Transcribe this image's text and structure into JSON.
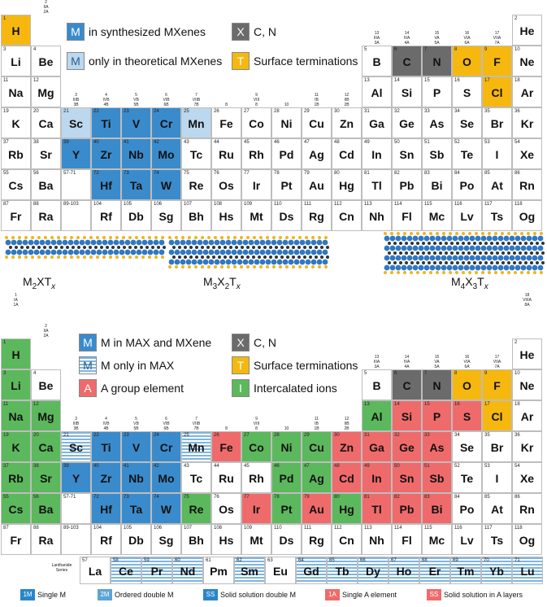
{
  "colors": {
    "synth": "#3a8bcc",
    "theory": "#bcd8ef",
    "gray": "#6b6b6b",
    "term": "#f6b80f",
    "agroup": "#ef6b6b",
    "interc": "#5cb85c",
    "white": "#ffffff",
    "hatch": "#7fb5de"
  },
  "elements": {
    "H": [
      1,
      "H"
    ],
    "He": [
      2,
      "He"
    ],
    "Li": [
      3,
      "Li"
    ],
    "Be": [
      4,
      "Be"
    ],
    "B": [
      5,
      "B"
    ],
    "C": [
      6,
      "C"
    ],
    "N": [
      7,
      "N"
    ],
    "O": [
      8,
      "O"
    ],
    "F": [
      9,
      "F"
    ],
    "Ne": [
      10,
      "Ne"
    ],
    "Na": [
      11,
      "Na"
    ],
    "Mg": [
      12,
      "Mg"
    ],
    "Al": [
      13,
      "Al"
    ],
    "Si": [
      14,
      "Si"
    ],
    "P": [
      15,
      "P"
    ],
    "S": [
      16,
      "S"
    ],
    "Cl": [
      17,
      "Cl"
    ],
    "Ar": [
      18,
      "Ar"
    ],
    "K": [
      19,
      "K"
    ],
    "Ca": [
      20,
      "Ca"
    ],
    "Sc": [
      21,
      "Sc"
    ],
    "Ti": [
      22,
      "Ti"
    ],
    "V": [
      23,
      "V"
    ],
    "Cr": [
      24,
      "Cr"
    ],
    "Mn": [
      25,
      "Mn"
    ],
    "Fe": [
      26,
      "Fe"
    ],
    "Co": [
      27,
      "Co"
    ],
    "Ni": [
      28,
      "Ni"
    ],
    "Cu": [
      29,
      "Cu"
    ],
    "Zn": [
      30,
      "Zn"
    ],
    "Ga": [
      31,
      "Ga"
    ],
    "Ge": [
      32,
      "Ge"
    ],
    "As": [
      33,
      "As"
    ],
    "Se": [
      34,
      "Se"
    ],
    "Br": [
      35,
      "Br"
    ],
    "Kr": [
      36,
      "Kr"
    ],
    "Rb": [
      37,
      "Rb"
    ],
    "Sr": [
      38,
      "Sr"
    ],
    "Y": [
      39,
      "Y"
    ],
    "Zr": [
      40,
      "Zr"
    ],
    "Nb": [
      41,
      "Nb"
    ],
    "Mo": [
      42,
      "Mo"
    ],
    "Tc": [
      43,
      "Tc"
    ],
    "Ru": [
      44,
      "Ru"
    ],
    "Rh": [
      45,
      "Rh"
    ],
    "Pd": [
      46,
      "Pd"
    ],
    "Ag": [
      47,
      "Ag"
    ],
    "Cd": [
      48,
      "Cd"
    ],
    "In": [
      49,
      "In"
    ],
    "Sn": [
      50,
      "Sn"
    ],
    "Sb": [
      51,
      "Sb"
    ],
    "Te": [
      52,
      "Te"
    ],
    "I": [
      53,
      "I"
    ],
    "Xe": [
      54,
      "Xe"
    ],
    "Cs": [
      55,
      "Cs"
    ],
    "Ba": [
      56,
      "Ba"
    ],
    "La57": [
      "57-71",
      ""
    ],
    "Hf": [
      72,
      "Hf"
    ],
    "Ta": [
      73,
      "Ta"
    ],
    "W": [
      74,
      "W"
    ],
    "Re": [
      75,
      "Re"
    ],
    "Os": [
      76,
      "Os"
    ],
    "Ir": [
      77,
      "Ir"
    ],
    "Pt": [
      78,
      "Pt"
    ],
    "Au": [
      79,
      "Au"
    ],
    "Hg": [
      80,
      "Hg"
    ],
    "Tl": [
      81,
      "Tl"
    ],
    "Pb": [
      82,
      "Pb"
    ],
    "Bi": [
      83,
      "Bi"
    ],
    "Po": [
      84,
      "Po"
    ],
    "At": [
      85,
      "At"
    ],
    "Rn": [
      86,
      "Rn"
    ],
    "Fr": [
      87,
      "Fr"
    ],
    "Ra": [
      88,
      "Ra"
    ],
    "Ac89": [
      "89-103",
      ""
    ],
    "Rf": [
      104,
      "Rf"
    ],
    "Db": [
      105,
      "Db"
    ],
    "Sg": [
      106,
      "Sg"
    ],
    "Bh": [
      107,
      "Bh"
    ],
    "Hs": [
      108,
      "Hs"
    ],
    "Mt": [
      109,
      "Mt"
    ],
    "Ds": [
      110,
      "Ds"
    ],
    "Rg": [
      111,
      "Rg"
    ],
    "Cn": [
      112,
      "Cn"
    ],
    "Nh": [
      113,
      "Nh"
    ],
    "Fl": [
      114,
      "Fl"
    ],
    "Mc": [
      115,
      "Mc"
    ],
    "Lv": [
      116,
      "Lv"
    ],
    "Ts": [
      117,
      "Ts"
    ],
    "Og": [
      118,
      "Og"
    ]
  },
  "layout_rows": [
    [
      "H",
      null,
      null,
      null,
      null,
      null,
      null,
      null,
      null,
      null,
      null,
      null,
      null,
      null,
      null,
      null,
      null,
      "He"
    ],
    [
      "Li",
      "Be",
      null,
      null,
      null,
      null,
      null,
      null,
      null,
      null,
      null,
      null,
      "B",
      "C",
      "N",
      "O",
      "F",
      "Ne"
    ],
    [
      "Na",
      "Mg",
      null,
      null,
      null,
      null,
      null,
      null,
      null,
      null,
      null,
      null,
      "Al",
      "Si",
      "P",
      "S",
      "Cl",
      "Ar"
    ],
    [
      "K",
      "Ca",
      "Sc",
      "Ti",
      "V",
      "Cr",
      "Mn",
      "Fe",
      "Co",
      "Ni",
      "Cu",
      "Zn",
      "Ga",
      "Ge",
      "As",
      "Se",
      "Br",
      "Kr"
    ],
    [
      "Rb",
      "Sr",
      "Y",
      "Zr",
      "Nb",
      "Mo",
      "Tc",
      "Ru",
      "Rh",
      "Pd",
      "Ag",
      "Cd",
      "In",
      "Sn",
      "Sb",
      "Te",
      "I",
      "Xe"
    ],
    [
      "Cs",
      "Ba",
      "La57",
      "Hf",
      "Ta",
      "W",
      "Re",
      "Os",
      "Ir",
      "Pt",
      "Au",
      "Hg",
      "Tl",
      "Pb",
      "Bi",
      "Po",
      "At",
      "Rn"
    ],
    [
      "Fr",
      "Ra",
      "Ac89",
      "Rf",
      "Db",
      "Sg",
      "Bh",
      "Hs",
      "Mt",
      "Ds",
      "Rg",
      "Cn",
      "Nh",
      "Fl",
      "Mc",
      "Lv",
      "Ts",
      "Og"
    ]
  ],
  "group_labels": {
    "g1": "1\nIA\n1A",
    "g2": "2\nIIA\n2A",
    "g3": "3\nIIIB\n3B",
    "g4": "4\nIVB\n4B",
    "g5": "5\nVB\n5B",
    "g6": "6\nVIB\n6B",
    "g7": "7\nVIIB\n7B",
    "g8": "8",
    "g9": "9\nVIII\n8",
    "g10": "10",
    "g11": "11\nIB\n1B",
    "g12": "12\nIIB\n2B",
    "g13": "13\nIIIA\n3A",
    "g14": "14\nIVA\n4A",
    "g15": "15\nVA\n5A",
    "g16": "16\nVIA\n6A",
    "g17": "17\nVIIA\n7A",
    "g18": "18\nVIIIA\n8A"
  },
  "table1": {
    "colors": {
      "Sc": "theory",
      "Ti": "synth",
      "V": "synth",
      "Cr": "synth",
      "Mn": "theory",
      "Y": "synth",
      "Zr": "synth",
      "Nb": "synth",
      "Mo": "synth",
      "Hf": "synth",
      "Ta": "synth",
      "W": "synth",
      "C": "gray",
      "N": "gray",
      "O": "term",
      "F": "term",
      "Cl": "term",
      "H": "term"
    },
    "legend": [
      {
        "box": "M",
        "color": "synth",
        "text": "in synthesized MXenes"
      },
      {
        "box": "M",
        "color": "theory",
        "text": "only in theoretical MXenes"
      },
      {
        "box": "X",
        "color": "gray",
        "text": "C, N"
      },
      {
        "box": "T",
        "color": "term",
        "text": "Surface terminations"
      }
    ],
    "molecules": [
      {
        "label": "M",
        "sub1": "2",
        "mid": "XT",
        "sub2": "x"
      },
      {
        "label": "M",
        "sub1": "3",
        "mid": "X",
        "sub1b": "2",
        "midb": "T",
        "sub2": "x"
      },
      {
        "label": "M",
        "sub1": "4",
        "mid": "X",
        "sub1b": "3",
        "midb": "T",
        "sub2": "x"
      }
    ]
  },
  "table2": {
    "colors": {
      "H": "interc",
      "Li": "interc",
      "Na": "interc",
      "Mg": "interc",
      "K": "interc",
      "Ca": "interc",
      "Rb": "interc",
      "Sr": "interc",
      "Cs": "interc",
      "Ba": "interc",
      "Sc": "hatch",
      "Ti": "synth",
      "V": "synth",
      "Cr": "synth",
      "Mn": "hatch",
      "Y": "synth",
      "Zr": "synth",
      "Nb": "synth",
      "Mo": "synth",
      "Hf": "synth",
      "Ta": "synth",
      "W": "synth",
      "Fe": "agroup",
      "Co": "interc",
      "Ni": "interc",
      "Cu": "interc",
      "Zn": "agroup",
      "Re": "interc",
      "Ir": "agroup",
      "Pt": "interc",
      "Au": "agroup",
      "Hg": "interc",
      "Ag": "interc",
      "Cd": "agroup",
      "Pd": "interc",
      "Al": "interc",
      "Si": "agroup",
      "P": "agroup",
      "S": "agroup",
      "Ga": "agroup",
      "Ge": "agroup",
      "As": "agroup",
      "In": "agroup",
      "Sn": "agroup",
      "Sb": "agroup",
      "Tl": "agroup",
      "Pb": "agroup",
      "Bi": "agroup",
      "C": "gray",
      "N": "gray",
      "O": "term",
      "F": "term",
      "Cl": "term"
    },
    "legend": [
      {
        "box": "M",
        "color": "synth",
        "text": "M in MAX and MXene"
      },
      {
        "box": "M",
        "color": "hatch",
        "text": "M only in MAX"
      },
      {
        "box": "A",
        "color": "agroup",
        "text": "A group element"
      },
      {
        "box": "X",
        "color": "gray",
        "text": "C, N"
      },
      {
        "box": "T",
        "color": "term",
        "text": "Surface terminations"
      },
      {
        "box": "I",
        "color": "interc",
        "text": "Intercalated ions"
      }
    ],
    "lanthanide_label": "Lanthanide Series",
    "lanthanides": [
      [
        57,
        "La"
      ],
      [
        58,
        "Ce"
      ],
      [
        59,
        "Pr"
      ],
      [
        60,
        "Nd"
      ],
      [
        61,
        "Pm"
      ],
      [
        62,
        "Sm"
      ],
      [
        63,
        "Eu"
      ],
      [
        64,
        "Gd"
      ],
      [
        65,
        "Tb"
      ],
      [
        66,
        "Dy"
      ],
      [
        67,
        "Ho"
      ],
      [
        68,
        "Er"
      ],
      [
        69,
        "Tm"
      ],
      [
        70,
        "Yb"
      ],
      [
        71,
        "Lu"
      ]
    ],
    "bottom_legend": [
      {
        "badge": "1M",
        "color": "#2a86c9",
        "text": "Single M"
      },
      {
        "badge": "2M",
        "color": "#5ca4d6",
        "text": "Ordered double M"
      },
      {
        "badge": "SS",
        "color": "#2a86c9",
        "text": "Solid solution double M"
      },
      {
        "badge": "1A",
        "color": "#ef6b6b",
        "text": "Single A element"
      },
      {
        "badge": "SS",
        "color": "#ef6b6b",
        "text": "Solid solution in A layers"
      }
    ]
  }
}
